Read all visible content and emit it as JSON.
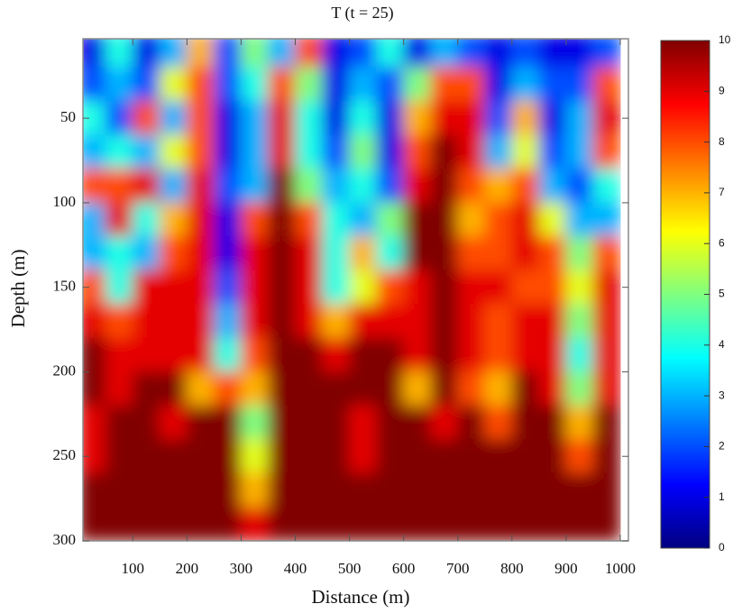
{
  "chart_data": {
    "type": "heatmap",
    "title": "T (t = 25)",
    "xlabel": "Distance (m)",
    "ylabel": "Depth (m)",
    "colormap": "jet",
    "y_inverted": true,
    "xlim": [
      8,
      1015
    ],
    "ylim": [
      3,
      300
    ],
    "xticks": [
      100,
      200,
      300,
      400,
      500,
      600,
      700,
      800,
      900,
      1000
    ],
    "yticks": [
      50,
      100,
      150,
      200,
      250,
      300
    ],
    "zlim": [
      0,
      10
    ],
    "zticks": [
      0,
      1,
      2,
      3,
      4,
      5,
      6,
      7,
      8,
      9,
      10
    ],
    "x": [
      25,
      75,
      125,
      175,
      225,
      275,
      325,
      375,
      425,
      475,
      525,
      575,
      625,
      675,
      725,
      775,
      825,
      875,
      925,
      975
    ],
    "y": [
      10,
      30,
      50,
      70,
      90,
      110,
      130,
      150,
      170,
      190,
      210,
      230,
      250,
      270,
      290
    ],
    "z": [
      [
        1,
        4,
        1,
        3,
        7,
        2,
        5,
        3,
        8,
        1,
        2,
        4,
        1,
        3,
        2,
        1,
        2,
        1,
        1,
        2
      ],
      [
        2,
        3,
        2,
        6,
        8,
        2,
        4,
        8,
        5,
        1,
        3,
        2,
        5,
        8,
        8,
        1,
        3,
        2,
        2,
        8
      ],
      [
        4,
        2,
        8,
        3,
        8,
        1,
        3,
        9,
        4,
        1,
        4,
        1,
        7,
        9,
        9,
        2,
        7,
        1,
        3,
        9
      ],
      [
        3,
        4,
        3,
        6,
        8,
        1,
        3,
        9,
        4,
        2,
        5,
        1,
        8,
        10,
        9,
        3,
        6,
        2,
        3,
        8
      ],
      [
        8,
        8,
        9,
        3,
        9,
        2,
        3,
        10,
        5,
        3,
        4,
        2,
        9,
        10,
        8,
        7,
        8,
        3,
        2,
        4
      ],
      [
        3,
        9,
        4,
        7,
        9,
        1,
        8,
        10,
        8,
        4,
        3,
        5,
        10,
        10,
        7,
        8,
        9,
        6,
        3,
        3
      ],
      [
        3,
        4,
        3,
        8,
        9,
        1,
        9,
        10,
        9,
        4,
        7,
        4,
        10,
        10,
        8,
        8,
        9,
        8,
        5,
        8
      ],
      [
        8,
        4,
        9,
        9,
        9,
        2,
        9,
        10,
        9,
        4,
        6,
        8,
        9,
        10,
        9,
        9,
        8,
        8,
        6,
        9
      ],
      [
        9,
        8,
        9,
        9,
        9,
        3,
        9,
        10,
        9,
        7,
        9,
        9,
        9,
        10,
        9,
        8,
        9,
        9,
        5,
        9
      ],
      [
        10,
        9,
        9,
        9,
        9,
        4,
        8,
        10,
        10,
        9,
        10,
        10,
        9,
        10,
        9,
        8,
        9,
        9,
        4,
        9
      ],
      [
        10,
        9,
        10,
        10,
        7,
        8,
        7,
        10,
        10,
        10,
        10,
        10,
        7,
        10,
        8,
        7,
        10,
        9,
        5,
        9
      ],
      [
        9,
        10,
        10,
        9,
        10,
        10,
        5,
        10,
        10,
        10,
        9,
        10,
        10,
        9,
        10,
        8,
        10,
        10,
        7,
        10
      ],
      [
        9,
        10,
        10,
        10,
        10,
        10,
        6,
        10,
        10,
        10,
        9,
        10,
        10,
        10,
        10,
        10,
        10,
        10,
        8,
        10
      ],
      [
        10,
        10,
        10,
        10,
        10,
        10,
        7,
        10,
        10,
        10,
        10,
        10,
        10,
        10,
        10,
        10,
        10,
        10,
        10,
        10
      ],
      [
        10,
        10,
        10,
        10,
        10,
        10,
        9,
        10,
        10,
        10,
        10,
        10,
        10,
        10,
        10,
        10,
        10,
        10,
        10,
        10
      ]
    ]
  }
}
